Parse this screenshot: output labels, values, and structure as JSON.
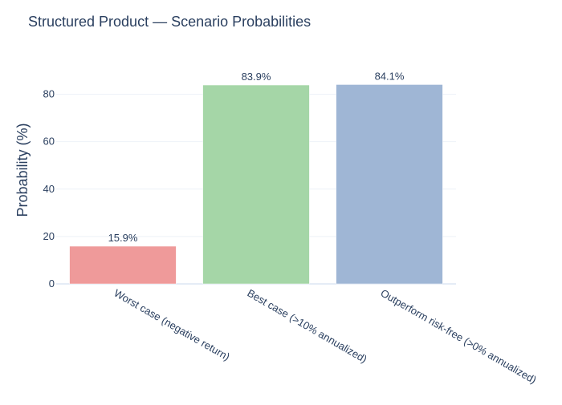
{
  "chart_data": {
    "type": "bar",
    "title": "Structured Product — Scenario Probabilities",
    "xlabel": "",
    "ylabel": "Probability (%)",
    "categories": [
      "Worst case (negative return)",
      "Best case (>10% annualized)",
      "Outperform risk-free (>0% annualized)"
    ],
    "values": [
      15.9,
      83.9,
      84.1
    ],
    "data_labels": [
      "15.9%",
      "83.9%",
      "84.1%"
    ],
    "colors": [
      "#ef9a9a",
      "#a5d6a7",
      "#9fb6d5"
    ],
    "ylim": [
      0,
      90
    ],
    "yticks": [
      0,
      20,
      40,
      60,
      80
    ],
    "grid": true,
    "legend": "none"
  }
}
